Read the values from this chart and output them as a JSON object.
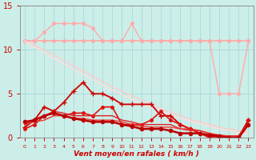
{
  "title": "",
  "xlabel": "Vent moyen/en rafales ( km/h )",
  "xlim": [
    -0.5,
    23.5
  ],
  "ylim": [
    0,
    15
  ],
  "yticks": [
    0,
    5,
    10,
    15
  ],
  "xticks": [
    0,
    1,
    2,
    3,
    4,
    5,
    6,
    7,
    8,
    9,
    10,
    11,
    12,
    13,
    14,
    15,
    16,
    17,
    18,
    19,
    20,
    21,
    22,
    23
  ],
  "bg_color": "#cceee8",
  "grid_color": "#aadddd",
  "tick_color": "#cc0000",
  "lines": [
    {
      "x": [
        0,
        1,
        2,
        3,
        4,
        5,
        6,
        7,
        8,
        9,
        10,
        11,
        12,
        13,
        14,
        15,
        16,
        17,
        18,
        19,
        20,
        21,
        22,
        23
      ],
      "y": [
        11.0,
        11.0,
        11.0,
        11.0,
        11.0,
        11.0,
        11.0,
        11.0,
        11.0,
        11.0,
        11.0,
        11.0,
        11.0,
        11.0,
        11.0,
        11.0,
        11.0,
        11.0,
        11.0,
        11.0,
        11.0,
        11.0,
        11.0,
        11.0
      ],
      "color": "#ffaaaa",
      "linewidth": 1.2,
      "marker": "o",
      "markersize": 2.5,
      "linestyle": "-"
    },
    {
      "x": [
        0,
        1,
        2,
        3,
        4,
        5,
        6,
        7,
        8,
        9,
        10,
        11,
        12,
        13,
        14,
        15,
        16,
        17,
        18,
        19,
        20,
        21,
        22,
        23
      ],
      "y": [
        11.0,
        11.0,
        12.0,
        13.0,
        13.0,
        13.0,
        13.0,
        12.5,
        11.0,
        11.0,
        11.0,
        13.0,
        11.0,
        11.0,
        11.0,
        11.0,
        11.0,
        11.0,
        11.0,
        11.0,
        5.0,
        5.0,
        5.0,
        11.0
      ],
      "color": "#ffaaaa",
      "linewidth": 1.0,
      "marker": "o",
      "markersize": 2.5,
      "linestyle": "-"
    },
    {
      "x": [
        0,
        1,
        2,
        3,
        4,
        5,
        6,
        7,
        8,
        9,
        10,
        11,
        12,
        13,
        14,
        15,
        16,
        17,
        18,
        19,
        20,
        21,
        22,
        23
      ],
      "y": [
        11.0,
        10.5,
        10.0,
        9.4,
        8.8,
        8.2,
        7.6,
        7.0,
        6.4,
        5.8,
        5.3,
        4.8,
        4.3,
        3.8,
        3.3,
        2.9,
        2.5,
        2.1,
        1.8,
        1.5,
        1.2,
        1.0,
        0.8,
        0.6
      ],
      "color": "#ffcccc",
      "linewidth": 1.0,
      "marker": null,
      "markersize": 0,
      "linestyle": "-"
    },
    {
      "x": [
        0,
        1,
        2,
        3,
        4,
        5,
        6,
        7,
        8,
        9,
        10,
        11,
        12,
        13,
        14,
        15,
        16,
        17,
        18,
        19,
        20,
        21,
        22,
        23
      ],
      "y": [
        11.0,
        10.3,
        9.7,
        9.0,
        8.4,
        7.8,
        7.2,
        6.6,
        6.0,
        5.4,
        4.9,
        4.4,
        3.9,
        3.4,
        3.0,
        2.6,
        2.2,
        1.9,
        1.6,
        1.3,
        1.0,
        0.8,
        0.6,
        0.4
      ],
      "color": "#ffdddd",
      "linewidth": 1.0,
      "marker": null,
      "markersize": 0,
      "linestyle": "-"
    },
    {
      "x": [
        0,
        1,
        2,
        3,
        4,
        5,
        6,
        7,
        8,
        9,
        10,
        11,
        12,
        13,
        14,
        15,
        16,
        17,
        18,
        19,
        20,
        21,
        22,
        23
      ],
      "y": [
        1.2,
        2.0,
        3.5,
        3.0,
        4.0,
        5.3,
        6.3,
        5.0,
        5.0,
        4.5,
        3.8,
        3.8,
        3.8,
        3.8,
        2.5,
        2.5,
        1.5,
        1.0,
        0.5,
        0.2,
        0.1,
        0.0,
        0.1,
        2.0
      ],
      "color": "#cc0000",
      "linewidth": 1.3,
      "marker": "+",
      "markersize": 4,
      "linestyle": "-"
    },
    {
      "x": [
        0,
        1,
        2,
        3,
        4,
        5,
        6,
        7,
        8,
        9,
        10,
        11,
        12,
        13,
        14,
        15,
        16,
        17,
        18,
        19,
        20,
        21,
        22,
        23
      ],
      "y": [
        1.0,
        1.5,
        2.5,
        2.8,
        2.5,
        2.8,
        2.8,
        2.5,
        3.5,
        3.5,
        1.5,
        1.5,
        1.5,
        2.0,
        3.0,
        2.0,
        1.5,
        1.0,
        0.5,
        0.0,
        0.0,
        0.0,
        0.0,
        2.0
      ],
      "color": "#dd1111",
      "linewidth": 1.2,
      "marker": "o",
      "markersize": 2.5,
      "linestyle": "-"
    },
    {
      "x": [
        0,
        1,
        2,
        3,
        4,
        5,
        6,
        7,
        8,
        9,
        10,
        11,
        12,
        13,
        14,
        15,
        16,
        17,
        18,
        19,
        20,
        21,
        22,
        23
      ],
      "y": [
        1.5,
        2.0,
        2.5,
        3.0,
        2.8,
        2.5,
        2.5,
        2.5,
        2.5,
        2.5,
        2.0,
        1.8,
        1.5,
        1.5,
        1.5,
        1.5,
        1.0,
        1.0,
        0.8,
        0.5,
        0.2,
        0.2,
        0.2,
        1.8
      ],
      "color": "#dd2222",
      "linewidth": 1.0,
      "marker": null,
      "markersize": 0,
      "linestyle": "-"
    },
    {
      "x": [
        0,
        1,
        2,
        3,
        4,
        5,
        6,
        7,
        8,
        9,
        10,
        11,
        12,
        13,
        14,
        15,
        16,
        17,
        18,
        19,
        20,
        21,
        22,
        23
      ],
      "y": [
        1.5,
        1.8,
        2.0,
        2.5,
        2.5,
        2.2,
        2.2,
        2.0,
        2.0,
        2.0,
        1.8,
        1.5,
        1.3,
        1.2,
        1.2,
        1.2,
        1.0,
        0.8,
        0.8,
        0.5,
        0.3,
        0.2,
        0.2,
        1.5
      ],
      "color": "#ee3333",
      "linewidth": 1.0,
      "marker": null,
      "markersize": 0,
      "linestyle": "-"
    },
    {
      "x": [
        0,
        1,
        2,
        3,
        4,
        5,
        6,
        7,
        8,
        9,
        10,
        11,
        12,
        13,
        14,
        15,
        16,
        17,
        18,
        19,
        20,
        21,
        22,
        23
      ],
      "y": [
        1.8,
        2.0,
        2.5,
        2.8,
        2.5,
        2.2,
        2.0,
        1.8,
        1.8,
        1.8,
        1.5,
        1.3,
        1.0,
        1.0,
        1.0,
        0.8,
        0.5,
        0.5,
        0.5,
        0.3,
        0.2,
        0.0,
        0.0,
        1.5
      ],
      "color": "#bb0000",
      "linewidth": 1.8,
      "marker": "o",
      "markersize": 3,
      "linestyle": "-"
    }
  ]
}
